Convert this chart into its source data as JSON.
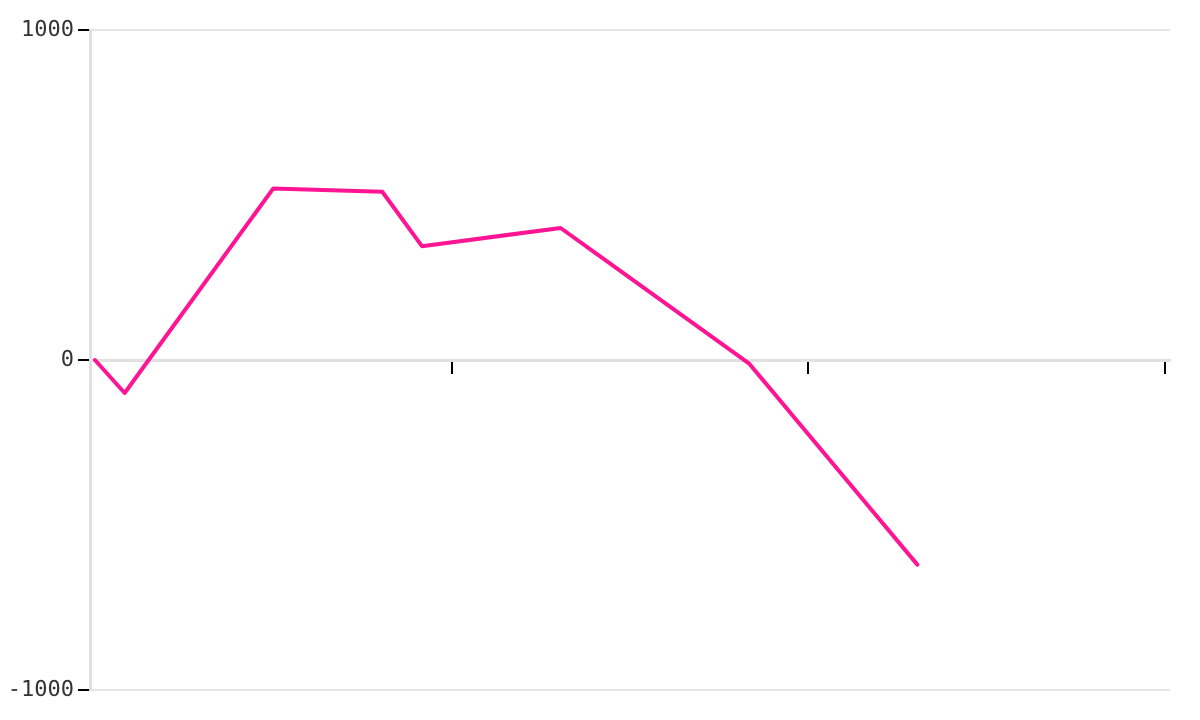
{
  "chart_data": {
    "type": "line",
    "categories": [
      null,
      null,
      null,
      null,
      null,
      null,
      null,
      null,
      null,
      null,
      null,
      null,
      null,
      null,
      null,
      null,
      null,
      null,
      null,
      null,
      null,
      null,
      null,
      null,
      null,
      null,
      null,
      null,
      null,
      null,
      null,
      null,
      null,
      null,
      null,
      null,
      null,
      null,
      null,
      null,
      null,
      null,
      null,
      null,
      null,
      null,
      null,
      null,
      null,
      null,
      null,
      null,
      null,
      null,
      null,
      null,
      null,
      null,
      null,
      null,
      null,
      null,
      null,
      null,
      null,
      null,
      null,
      null,
      null,
      null,
      null,
      null,
      null,
      null,
      null,
      null,
      null,
      null,
      null,
      null,
      null,
      null,
      null,
      null,
      null,
      null,
      null,
      null,
      null,
      null,
      null,
      null,
      null,
      null,
      null,
      null,
      null,
      null,
      null,
      null,
      null,
      null,
      null,
      null,
      null,
      null,
      null,
      null,
      null
    ],
    "series": [
      {
        "color": "#ff1493",
        "values": [
          0,
          null,
          null,
          -100,
          null,
          null,
          null,
          null,
          null,
          null,
          null,
          null,
          null,
          null,
          null,
          null,
          null,
          null,
          520,
          null,
          null,
          null,
          null,
          515,
          null,
          null,
          null,
          null,
          null,
          510,
          null,
          null,
          null,
          345,
          null,
          null,
          null,
          null,
          null,
          null,
          null,
          null,
          null,
          null,
          null,
          null,
          null,
          400,
          null,
          null,
          null,
          null,
          null,
          null,
          null,
          null,
          null,
          null,
          null,
          null,
          null,
          null,
          null,
          null,
          null,
          null,
          -10,
          null,
          null,
          null,
          null,
          null,
          null,
          null,
          null,
          null,
          null,
          null,
          null,
          null,
          null,
          null,
          null,
          -620,
          null,
          null,
          null,
          null,
          null,
          null,
          null,
          null,
          null,
          null,
          null,
          null,
          null,
          null,
          null,
          null,
          null,
          null,
          null,
          null,
          null,
          null,
          null,
          null,
          null
        ]
      }
    ],
    "ylim": [
      -1000,
      1000
    ],
    "yticks": [
      -1000,
      0,
      1000
    ],
    "tick_labels": "y",
    "grid": "y",
    "marker": "none",
    "line_style": "solid",
    "legend": false
  }
}
